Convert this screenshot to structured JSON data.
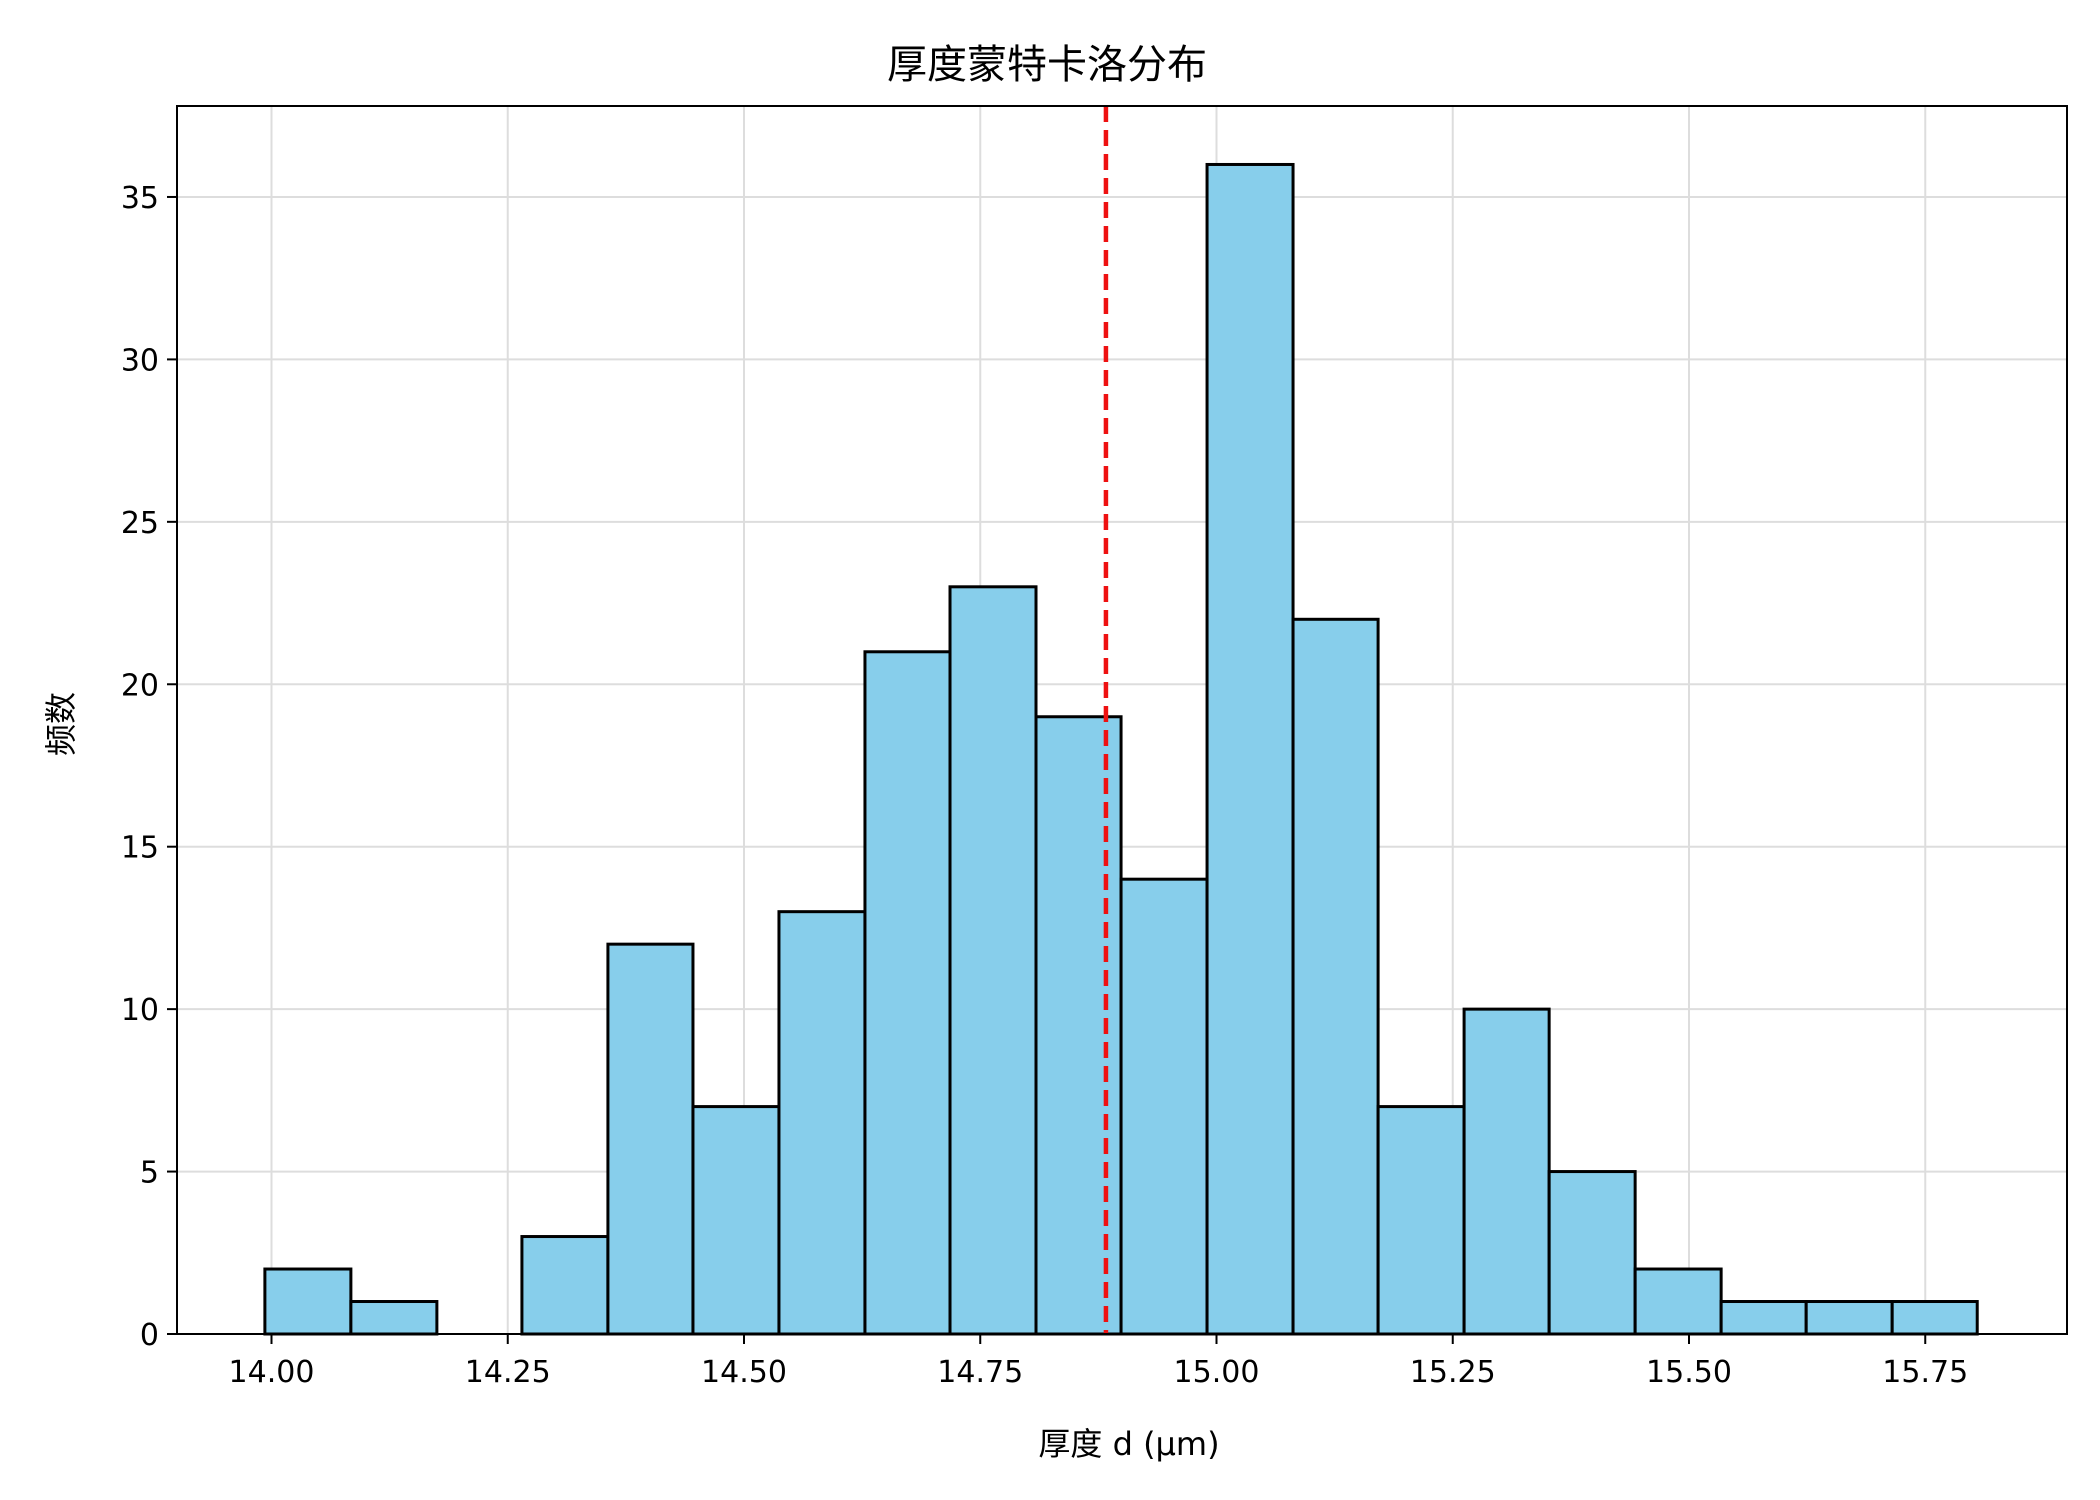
{
  "chart_data": {
    "type": "bar",
    "title": "厚度蒙特卡洛分布",
    "xlabel": "厚度 d (μm)",
    "ylabel": "频数",
    "xlim": [
      13.9,
      15.9
    ],
    "ylim": [
      0,
      37.8
    ],
    "xticks": [
      "14.00",
      "14.25",
      "14.50",
      "14.75",
      "15.00",
      "15.25",
      "15.50",
      "15.75"
    ],
    "xtick_values": [
      14.0,
      14.25,
      14.5,
      14.75,
      15.0,
      15.25,
      15.5,
      15.75
    ],
    "yticks": [
      "0",
      "5",
      "10",
      "15",
      "20",
      "25",
      "30",
      "35"
    ],
    "ytick_values": [
      0,
      5,
      10,
      15,
      20,
      25,
      30,
      35
    ],
    "bin_edges": [
      13.993,
      14.084,
      14.175,
      14.265,
      14.356,
      14.446,
      14.537,
      14.628,
      14.718,
      14.809,
      14.899,
      14.99,
      15.081,
      15.171,
      15.262,
      15.352,
      15.443,
      15.534,
      15.624,
      15.715,
      15.805
    ],
    "counts": [
      2,
      1,
      0,
      3,
      12,
      7,
      13,
      21,
      23,
      19,
      14,
      36,
      22,
      7,
      10,
      5,
      2,
      1,
      1,
      1
    ],
    "mean_line": 14.883,
    "grid": true,
    "colors": {
      "bar_fill": "#87ceeb",
      "bar_edge": "#000000",
      "mean_line": "#ee1111",
      "grid": "#dddddd"
    }
  }
}
